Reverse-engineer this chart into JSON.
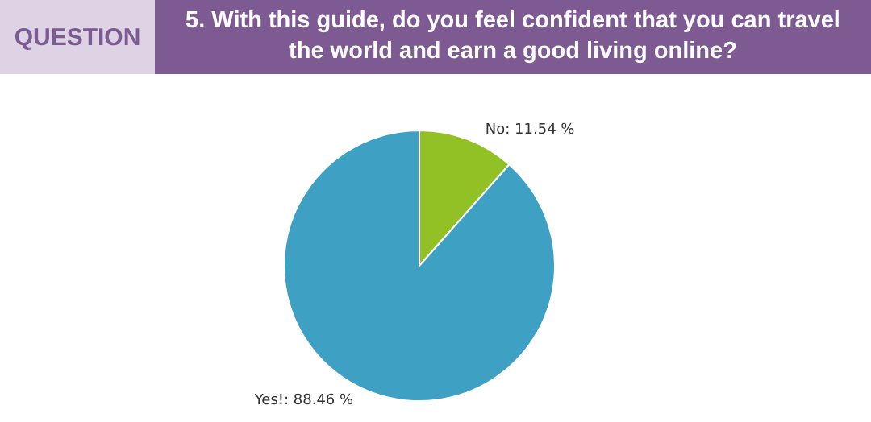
{
  "chart_data": {
    "type": "pie",
    "title": "5. With this guide, do you feel confident that you can travel the world and earn a good living online?",
    "annotations": [
      "QUESTION"
    ],
    "categories": [
      "No",
      "Yes!"
    ],
    "values": [
      11.54,
      88.46
    ],
    "colors": [
      "#92c125",
      "#3ea0c3"
    ],
    "value_labels": [
      ": 11.54 %",
      ": 88.46 %"
    ],
    "legend": false
  }
}
